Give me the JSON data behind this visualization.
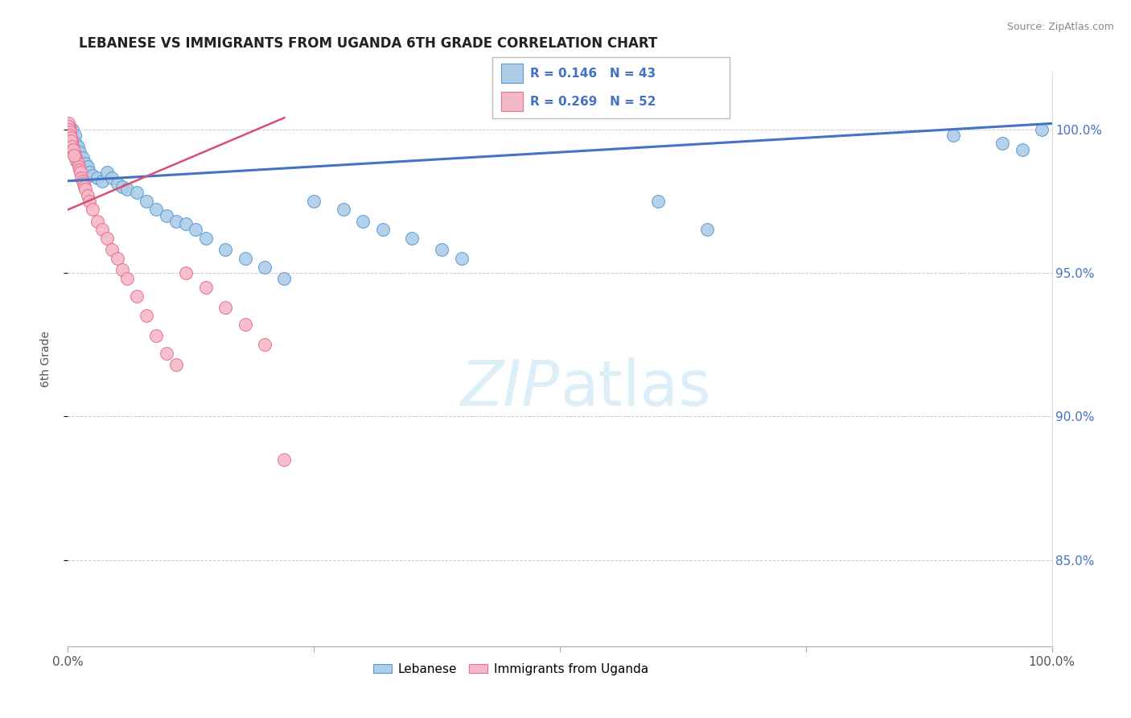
{
  "title": "LEBANESE VS IMMIGRANTS FROM UGANDA 6TH GRADE CORRELATION CHART",
  "source": "Source: ZipAtlas.com",
  "ylabel": "6th Grade",
  "xlim": [
    0,
    100
  ],
  "ylim": [
    82,
    102
  ],
  "yticks": [
    85,
    90,
    95,
    100
  ],
  "xticks": [
    0,
    25,
    50,
    75,
    100
  ],
  "xtick_labels": [
    "0.0%",
    "",
    "",
    "",
    "100.0%"
  ],
  "ytick_labels": [
    "85.0%",
    "90.0%",
    "95.0%",
    "100.0%"
  ],
  "legend_labels": [
    "Lebanese",
    "Immigrants from Uganda"
  ],
  "R_blue": 0.146,
  "N_blue": 43,
  "R_pink": 0.269,
  "N_pink": 52,
  "blue_color": "#aecde8",
  "pink_color": "#f5b8c8",
  "blue_edge_color": "#5b9bd5",
  "pink_edge_color": "#e87090",
  "blue_line_color": "#4472c4",
  "pink_line_color": "#d94f70",
  "right_axis_color": "#4472c4",
  "watermark_color": "#dceef8",
  "blue_trend_x": [
    0,
    100
  ],
  "blue_trend_y": [
    98.2,
    100.2
  ],
  "pink_trend_x": [
    0,
    22
  ],
  "pink_trend_y": [
    97.2,
    100.4
  ],
  "blue_scatter_x": [
    0.3,
    0.5,
    0.7,
    0.8,
    1.0,
    1.2,
    1.5,
    1.8,
    2.0,
    2.2,
    2.5,
    3.0,
    3.5,
    4.0,
    4.5,
    5.0,
    5.5,
    6.0,
    7.0,
    8.0,
    9.0,
    10.0,
    11.0,
    12.0,
    13.0,
    14.0,
    16.0,
    18.0,
    20.0,
    22.0,
    25.0,
    28.0,
    30.0,
    32.0,
    35.0,
    38.0,
    40.0,
    60.0,
    65.0,
    90.0,
    95.0,
    97.0,
    99.0
  ],
  "blue_scatter_y": [
    99.6,
    100.0,
    99.8,
    99.5,
    99.4,
    99.2,
    99.0,
    98.8,
    98.7,
    98.5,
    98.4,
    98.3,
    98.2,
    98.5,
    98.3,
    98.1,
    98.0,
    97.9,
    97.8,
    97.5,
    97.2,
    97.0,
    96.8,
    96.7,
    96.5,
    96.2,
    95.8,
    95.5,
    95.2,
    94.8,
    97.5,
    97.2,
    96.8,
    96.5,
    96.2,
    95.8,
    95.5,
    97.5,
    96.5,
    99.8,
    99.5,
    99.3,
    100.0
  ],
  "pink_scatter_x": [
    0.1,
    0.15,
    0.2,
    0.25,
    0.3,
    0.35,
    0.4,
    0.5,
    0.6,
    0.7,
    0.8,
    0.9,
    1.0,
    1.1,
    1.2,
    1.3,
    1.4,
    1.5,
    1.6,
    1.7,
    1.8,
    2.0,
    2.2,
    2.5,
    3.0,
    3.5,
    4.0,
    4.5,
    5.0,
    5.5,
    6.0,
    7.0,
    8.0,
    9.0,
    10.0,
    11.0,
    12.0,
    14.0,
    16.0,
    18.0,
    20.0,
    22.0,
    0.05,
    0.08,
    0.12,
    0.18,
    0.22,
    0.28,
    0.32,
    0.42,
    0.52,
    0.62
  ],
  "pink_scatter_y": [
    100.1,
    100.0,
    99.9,
    99.8,
    99.7,
    99.6,
    99.5,
    99.4,
    99.2,
    99.1,
    99.0,
    98.9,
    98.8,
    98.7,
    98.6,
    98.5,
    98.3,
    98.2,
    98.1,
    98.0,
    97.9,
    97.7,
    97.5,
    97.2,
    96.8,
    96.5,
    96.2,
    95.8,
    95.5,
    95.1,
    94.8,
    94.2,
    93.5,
    92.8,
    92.2,
    91.8,
    95.0,
    94.5,
    93.8,
    93.2,
    92.5,
    88.5,
    100.2,
    100.1,
    100.0,
    99.9,
    99.8,
    99.7,
    99.6,
    99.4,
    99.3,
    99.1
  ]
}
